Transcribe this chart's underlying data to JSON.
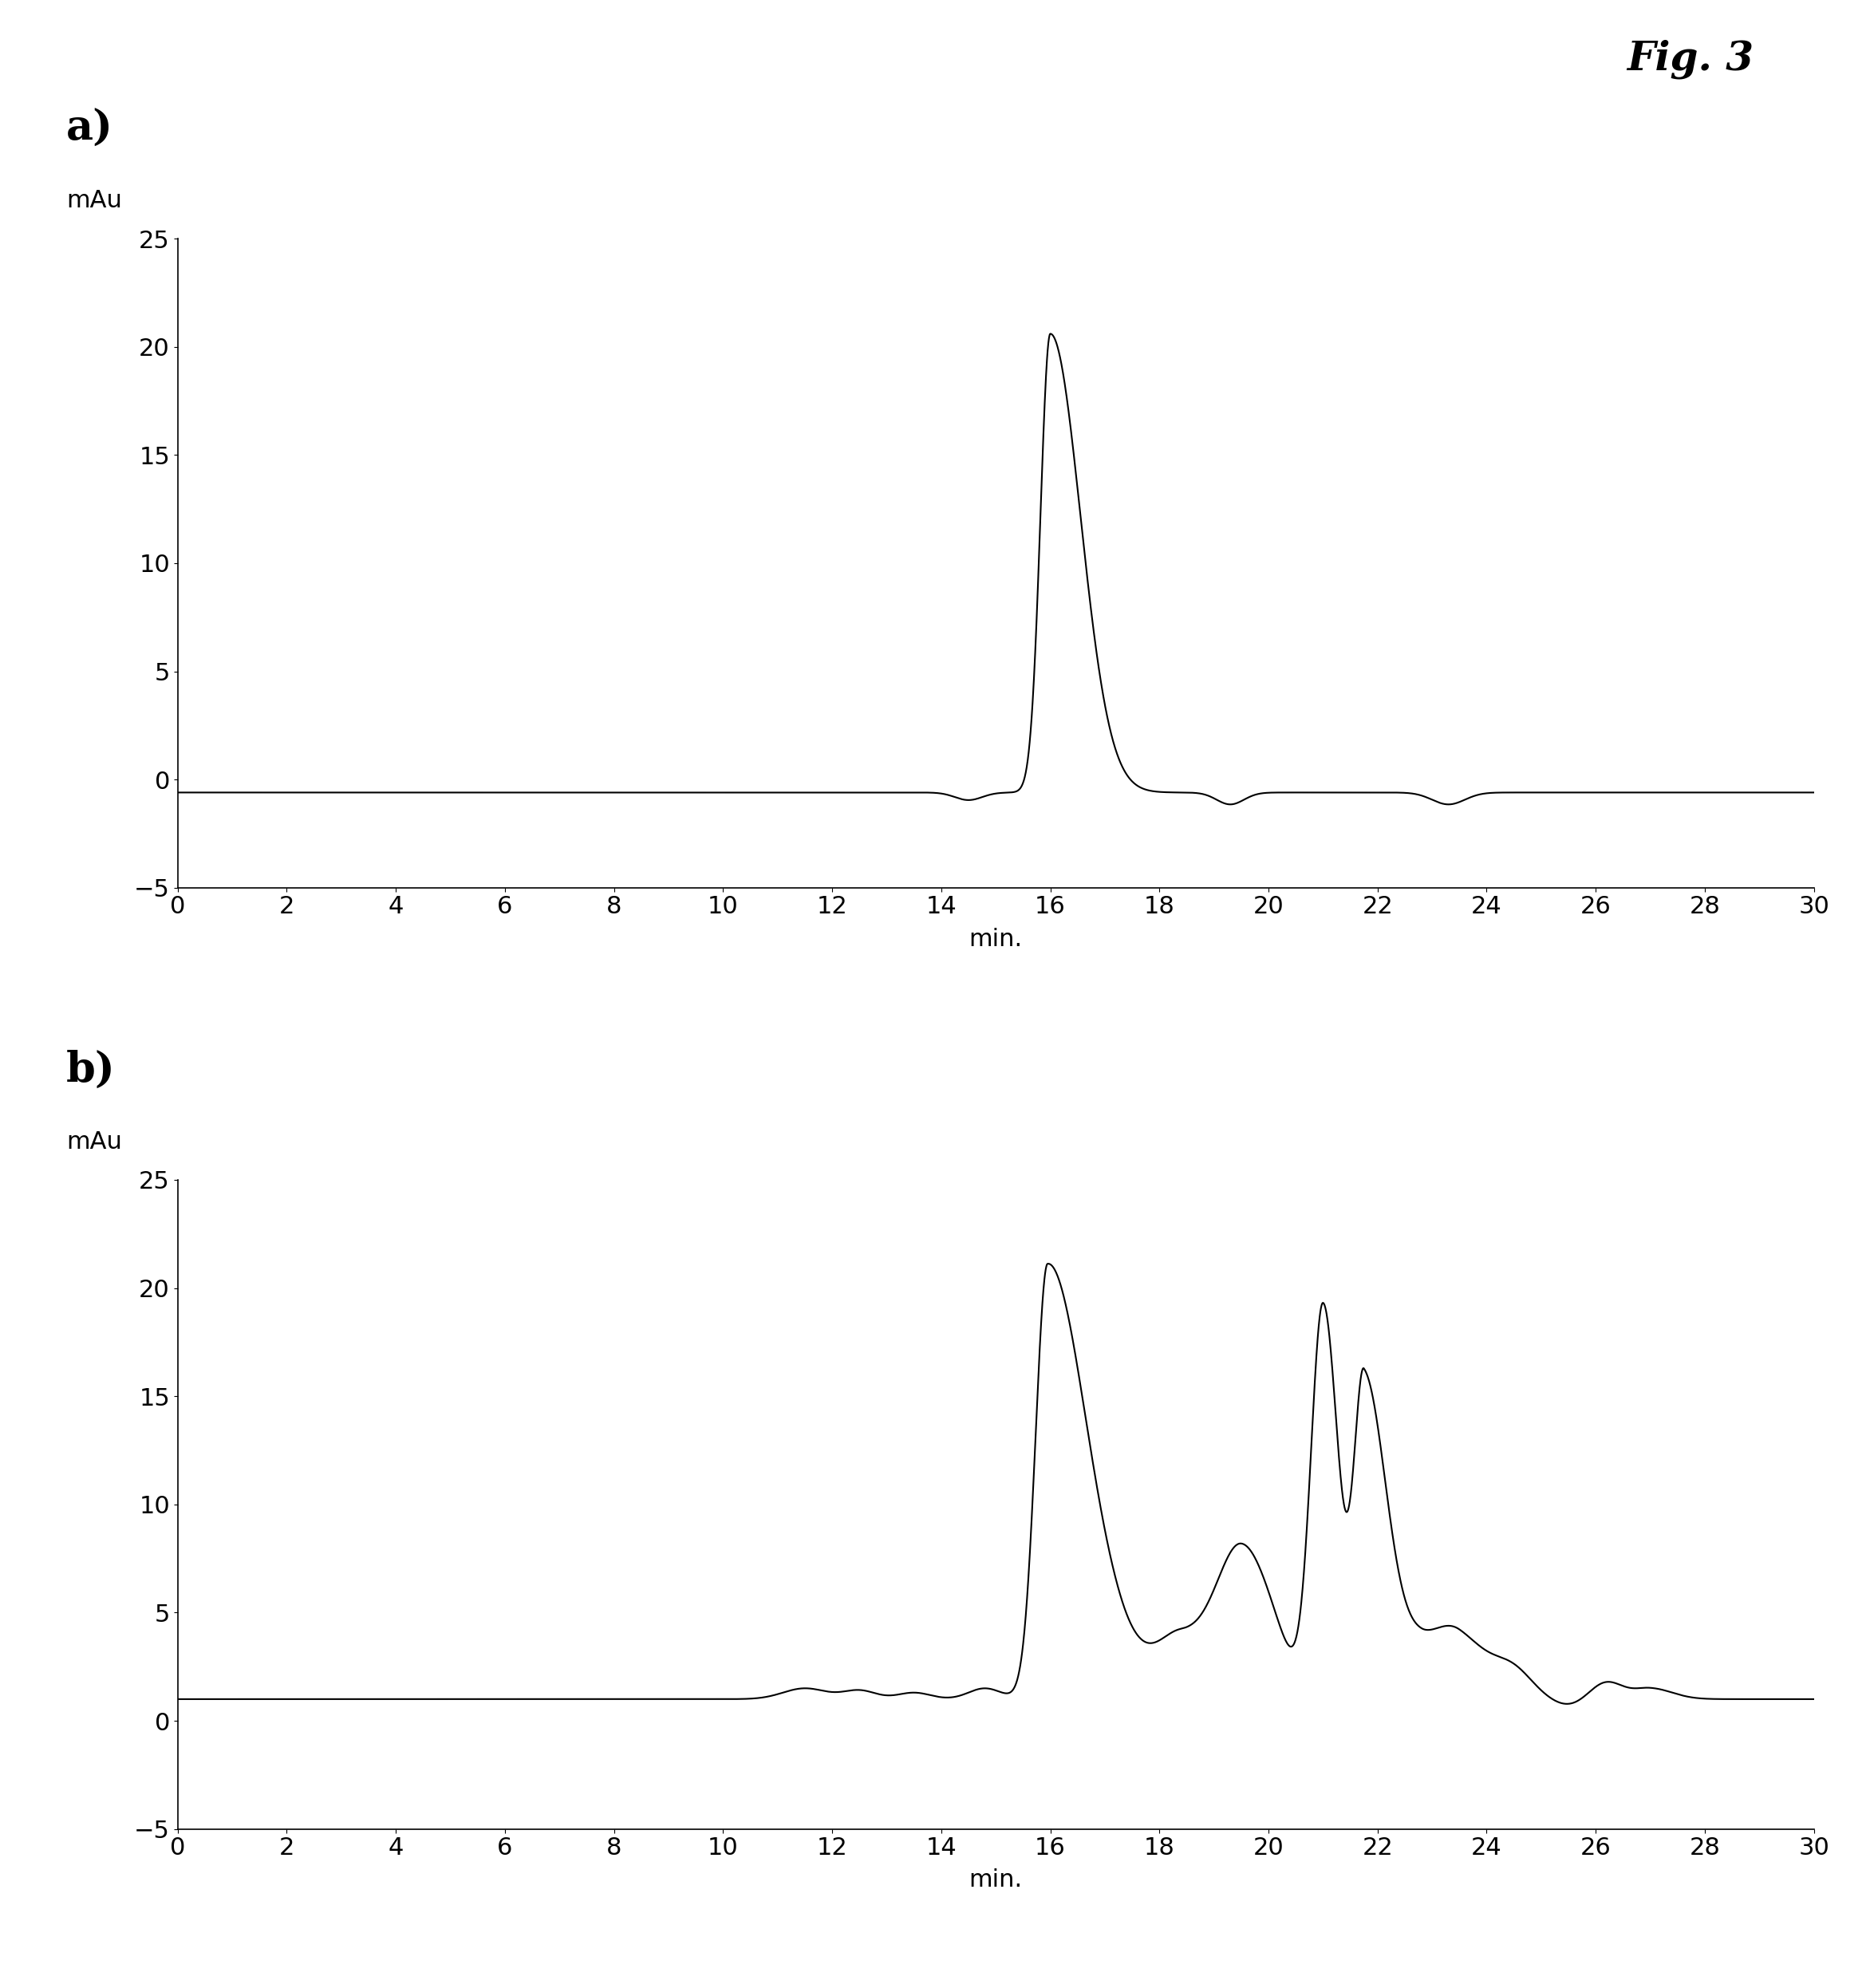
{
  "fig_label": "Fig. 3",
  "panel_a_label": "a)",
  "panel_b_label": "b)",
  "ylabel": "mAu",
  "xlabel": "min.",
  "xlim": [
    0,
    30
  ],
  "xticks": [
    0,
    2,
    4,
    6,
    8,
    10,
    12,
    14,
    16,
    18,
    20,
    22,
    24,
    26,
    28,
    30
  ],
  "panel_a": {
    "ylim": [
      -5,
      25
    ],
    "yticks": [
      -5,
      0,
      5,
      10,
      15,
      20,
      25
    ],
    "baseline": -0.6
  },
  "panel_b": {
    "ylim": [
      -5,
      25
    ],
    "yticks": [
      -5,
      0,
      5,
      10,
      15,
      20,
      25
    ],
    "baseline": 1.0
  },
  "line_color": "#000000",
  "line_width": 1.5,
  "background_color": "#ffffff",
  "spine_color": "#000000",
  "tick_label_fontsize": 22,
  "axis_label_fontsize": 22,
  "panel_label_fontsize": 38,
  "fig_label_fontsize": 36
}
